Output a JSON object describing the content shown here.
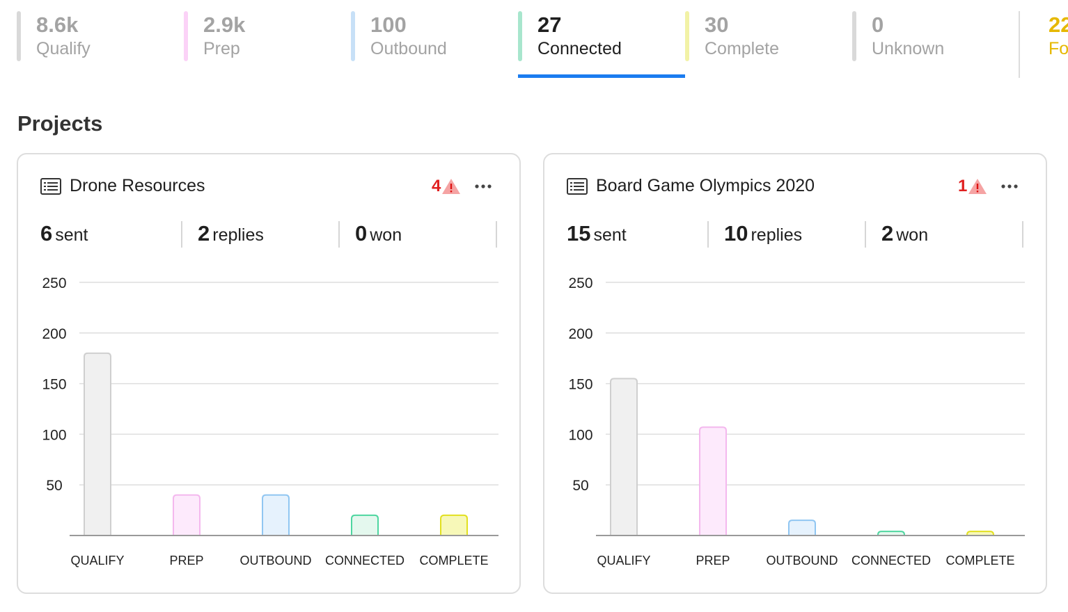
{
  "tabs": [
    {
      "value": "8.6k",
      "label": "Qualify",
      "color": "#d9d9d9",
      "active": false
    },
    {
      "value": "2.9k",
      "label": "Prep",
      "color": "#fbd2f7",
      "active": false
    },
    {
      "value": "100",
      "label": "Outbound",
      "color": "#c7e0f7",
      "active": false
    },
    {
      "value": "27",
      "label": "Connected",
      "color": "#a8e6cd",
      "active": true
    },
    {
      "value": "30",
      "label": "Complete",
      "color": "#f2f2a6",
      "active": false
    },
    {
      "value": "0",
      "label": "Unknown",
      "color": "#d9d9d9",
      "active": false
    },
    {
      "value": "22",
      "label": "Fo",
      "color": "#e6b800",
      "active": false
    }
  ],
  "section_title": "Projects",
  "projects": [
    {
      "title": "Drone Resources",
      "alert_count": "4",
      "stats": {
        "sent": "6",
        "sent_label": "sent",
        "replies": "2",
        "replies_label": "replies",
        "won": "0",
        "won_label": "won"
      }
    },
    {
      "title": "Board Game Olympics 2020",
      "alert_count": "1",
      "stats": {
        "sent": "15",
        "sent_label": "sent",
        "replies": "10",
        "replies_label": "replies",
        "won": "2",
        "won_label": "won"
      }
    }
  ],
  "chart_data": [
    {
      "type": "bar",
      "categories": [
        "QUALIFY",
        "PREP",
        "OUTBOUND",
        "CONNECTED",
        "COMPLETE"
      ],
      "values": [
        180,
        40,
        40,
        20,
        20
      ],
      "yticks": [
        50,
        100,
        150,
        200,
        250
      ],
      "ylim": [
        0,
        250
      ],
      "grid": true,
      "bar_fill": [
        "#f0f0f0",
        "#fdeafc",
        "#e6f2fd",
        "#e4f8ee",
        "#f7f8b8"
      ],
      "bar_stroke": [
        "#cfcfcf",
        "#f4b8ee",
        "#90c6f2",
        "#4ed6a0",
        "#e2e020"
      ]
    },
    {
      "type": "bar",
      "categories": [
        "QUALIFY",
        "PREP",
        "OUTBOUND",
        "CONNECTED",
        "COMPLETE"
      ],
      "values": [
        155,
        107,
        15,
        4,
        4
      ],
      "yticks": [
        50,
        100,
        150,
        200,
        250
      ],
      "ylim": [
        0,
        250
      ],
      "grid": true,
      "bar_fill": [
        "#f0f0f0",
        "#fdeafc",
        "#e6f2fd",
        "#e4f8ee",
        "#f7f8b8"
      ],
      "bar_stroke": [
        "#cfcfcf",
        "#f4b8ee",
        "#90c6f2",
        "#4ed6a0",
        "#e2e020"
      ]
    }
  ]
}
